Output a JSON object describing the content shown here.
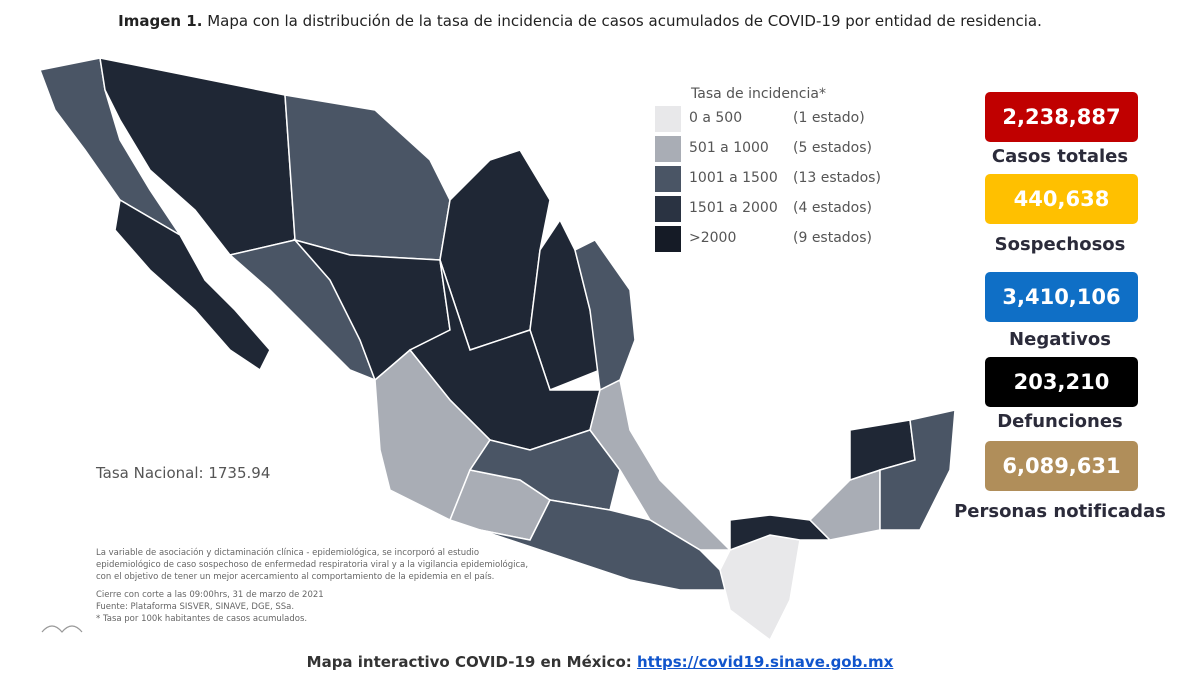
{
  "header": {
    "label": "Imagen 1.",
    "title": "Mapa con la distribución de la tasa de incidencia de casos acumulados de COVID-19 por entidad de residencia."
  },
  "legend": {
    "title": "Tasa de incidencia*",
    "items": [
      {
        "range": "0 a 500",
        "count": "(1 estado)",
        "color": "#e8e8ea"
      },
      {
        "range": "501 a 1000",
        "count": "(5 estados)",
        "color": "#a9adb5"
      },
      {
        "range": "1001 a 1500",
        "count": "(13 estados)",
        "color": "#4a5565"
      },
      {
        "range": "1501 a 2000",
        "count": "(4 estados)",
        "color": "#2a3342"
      },
      {
        "range": ">2000",
        "count": "(9 estados)",
        "color": "#151b26"
      }
    ]
  },
  "national_rate": "Tasa Nacional: 1735.94",
  "notes": [
    "La variable de asociación y dictaminación clínica - epidemiológica, se incorporó al estudio",
    "epidemiológico de caso sospechoso de enfermedad respiratoria viral y a la vigilancia epidemiológica,",
    "con el objetivo de tener un mejor acercamiento al comportamiento de la epidemia en el país.",
    "Cierre con corte a las 09:00hrs, 31 de marzo de 2021",
    "Fuente: Plataforma SISVER, SINAVE, DGE, SSa.",
    "* Tasa por 100k habitantes de casos acumulados."
  ],
  "stats": [
    {
      "value": "2,238,887",
      "label": "Casos totales",
      "color": "#c00000"
    },
    {
      "value": "440,638",
      "label": "Sospechosos",
      "color": "#ffc000"
    },
    {
      "value": "3,410,106",
      "label": "Negativos",
      "color": "#0f6fc6"
    },
    {
      "value": "203,210",
      "label": "Defunciones",
      "color": "#000000"
    },
    {
      "value": "6,089,631",
      "label": "Personas notificadas",
      "color": "#b08e5a"
    }
  ],
  "footer": {
    "text": "Mapa interactivo COVID-19 en México:",
    "link": "https://covid19.sinave.gob.mx"
  }
}
